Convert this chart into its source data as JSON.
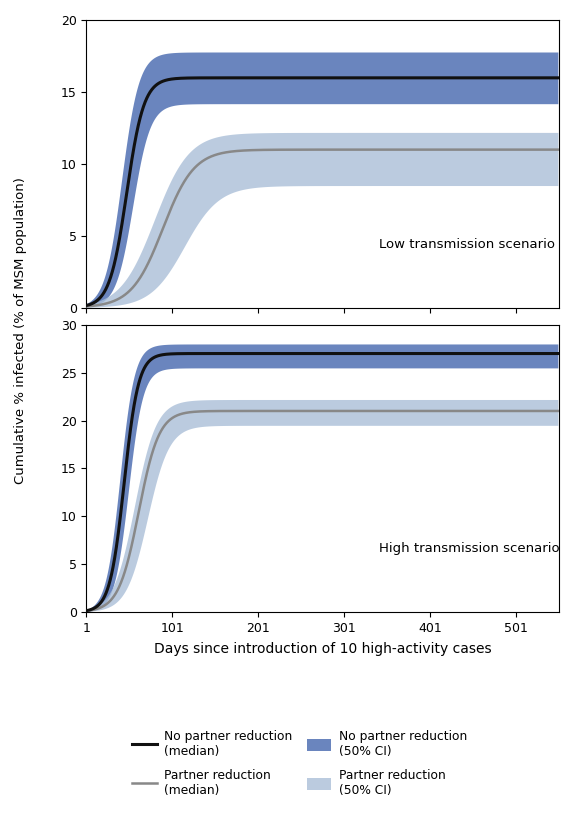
{
  "xlabel": "Days since introduction of 10 high-activity cases",
  "ylabel": "Cumulative % infected (% of MSM population)",
  "x_ticks": [
    1,
    101,
    201,
    301,
    401,
    501
  ],
  "x_tick_labels": [
    "1",
    "101",
    "201",
    "301",
    "401",
    "501"
  ],
  "low_ylim": [
    0,
    20
  ],
  "high_ylim": [
    0,
    30
  ],
  "low_y_ticks": [
    0,
    5,
    10,
    15,
    20
  ],
  "high_y_ticks": [
    0,
    5,
    10,
    15,
    20,
    25,
    30
  ],
  "low_scenario_label": "Low transmission scenario",
  "high_scenario_label": "High transmission scenario",
  "blue_dark": "#2B52A3",
  "blue_light": "#AABFD8",
  "gray_med": "#888888",
  "black": "#111111",
  "x_min": 1,
  "x_max": 551
}
